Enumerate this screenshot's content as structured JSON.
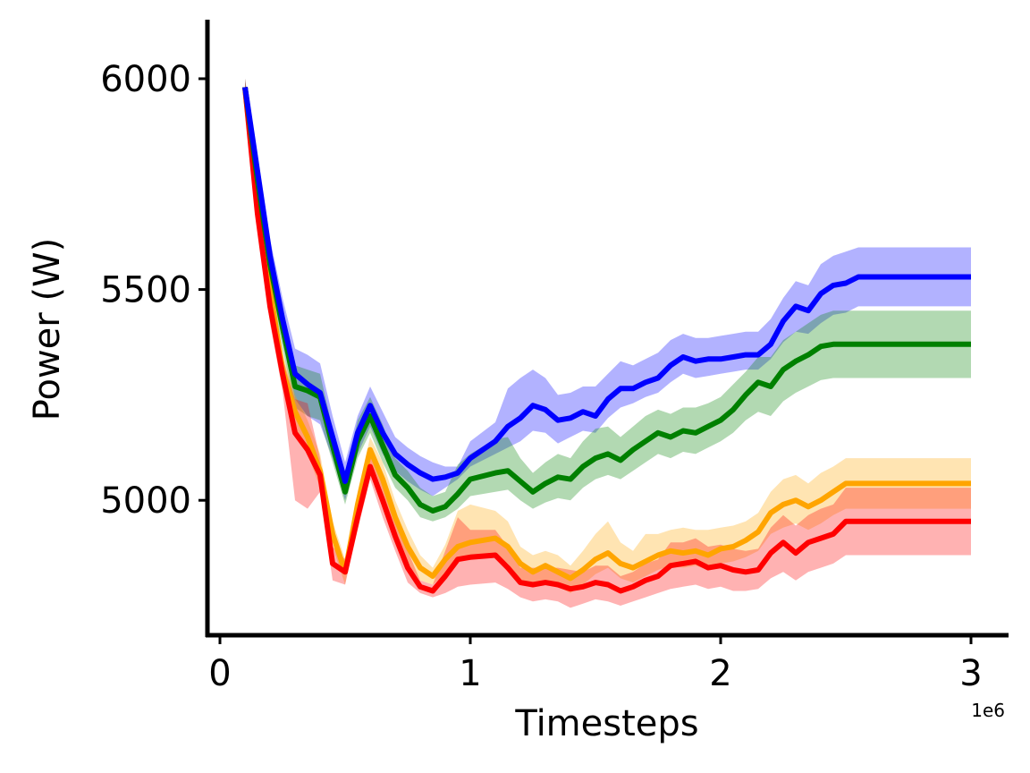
{
  "chart_data": {
    "type": "line",
    "xlabel": "Timesteps",
    "ylabel": "Power (W)",
    "x_offset_label": "1e6",
    "xlim": [
      -0.05,
      3.15
    ],
    "ylim": [
      4680,
      6140
    ],
    "x_ticks": [
      0,
      1,
      2,
      3
    ],
    "x_tick_labels": [
      "0",
      "1",
      "2",
      "3"
    ],
    "y_ticks": [
      5000,
      5500,
      6000
    ],
    "y_tick_labels": [
      "5000",
      "5500",
      "6000"
    ],
    "grid": false,
    "legend": "none",
    "x_unit_scale": 1000000,
    "x": [
      0.1,
      0.15,
      0.2,
      0.25,
      0.3,
      0.35,
      0.4,
      0.45,
      0.5,
      0.55,
      0.6,
      0.65,
      0.7,
      0.75,
      0.8,
      0.85,
      0.9,
      0.95,
      1.0,
      1.1,
      1.15,
      1.2,
      1.25,
      1.3,
      1.35,
      1.4,
      1.45,
      1.5,
      1.55,
      1.6,
      1.65,
      1.7,
      1.75,
      1.8,
      1.85,
      1.9,
      1.95,
      2.0,
      2.05,
      2.1,
      2.15,
      2.2,
      2.25,
      2.3,
      2.35,
      2.4,
      2.45,
      2.5,
      2.55,
      2.6,
      2.65,
      2.7,
      2.75,
      2.8,
      2.85,
      2.9,
      2.95,
      3.0
    ],
    "series": [
      {
        "color": "#0000ff",
        "band_color": "#0000ff",
        "values": [
          5980,
          5780,
          5580,
          5430,
          5300,
          5275,
          5255,
          5150,
          5045,
          5160,
          5225,
          5160,
          5110,
          5085,
          5065,
          5050,
          5055,
          5065,
          5100,
          5140,
          5175,
          5195,
          5225,
          5215,
          5190,
          5195,
          5210,
          5200,
          5240,
          5265,
          5265,
          5280,
          5290,
          5320,
          5340,
          5330,
          5335,
          5335,
          5340,
          5345,
          5345,
          5370,
          5425,
          5460,
          5450,
          5490,
          5510,
          5515,
          5530,
          5530,
          5530,
          5530,
          5530,
          5530,
          5530,
          5530,
          5530,
          5530
        ],
        "lower": [
          5960,
          5740,
          5540,
          5380,
          5240,
          5200,
          5180,
          5100,
          5000,
          5110,
          5175,
          5110,
          5070,
          5045,
          5025,
          5010,
          5030,
          5050,
          5080,
          5110,
          5125,
          5140,
          5165,
          5160,
          5135,
          5150,
          5165,
          5160,
          5195,
          5220,
          5230,
          5245,
          5255,
          5280,
          5300,
          5290,
          5295,
          5300,
          5305,
          5310,
          5310,
          5335,
          5375,
          5400,
          5395,
          5420,
          5440,
          5445,
          5460,
          5460,
          5460,
          5460,
          5460,
          5460,
          5460,
          5460,
          5460,
          5460
        ],
        "upper": [
          6000,
          5820,
          5620,
          5480,
          5360,
          5345,
          5325,
          5200,
          5090,
          5200,
          5270,
          5210,
          5150,
          5125,
          5105,
          5090,
          5080,
          5080,
          5140,
          5185,
          5265,
          5290,
          5310,
          5290,
          5250,
          5255,
          5270,
          5270,
          5300,
          5330,
          5320,
          5335,
          5350,
          5380,
          5395,
          5385,
          5385,
          5390,
          5395,
          5400,
          5400,
          5430,
          5480,
          5520,
          5510,
          5560,
          5580,
          5590,
          5600,
          5600,
          5600,
          5600,
          5600,
          5600,
          5600,
          5600,
          5600,
          5600
        ]
      },
      {
        "color": "#008000",
        "band_color": "#008000",
        "values": [
          5980,
          5760,
          5560,
          5410,
          5270,
          5260,
          5245,
          5130,
          5020,
          5140,
          5200,
          5130,
          5060,
          5030,
          4990,
          4975,
          4985,
          5015,
          5050,
          5065,
          5070,
          5045,
          5020,
          5040,
          5055,
          5050,
          5080,
          5100,
          5110,
          5095,
          5120,
          5140,
          5160,
          5150,
          5165,
          5160,
          5175,
          5190,
          5215,
          5250,
          5280,
          5270,
          5310,
          5330,
          5345,
          5365,
          5370,
          5370,
          5370,
          5370,
          5370,
          5370,
          5370,
          5370,
          5370,
          5370,
          5370,
          5370
        ],
        "lower": [
          5960,
          5720,
          5520,
          5360,
          5220,
          5200,
          5190,
          5090,
          4990,
          5100,
          5160,
          5090,
          5030,
          5000,
          4960,
          4950,
          4960,
          4980,
          5010,
          5020,
          5025,
          5000,
          4980,
          4995,
          5005,
          5000,
          5030,
          5050,
          5060,
          5050,
          5070,
          5090,
          5110,
          5100,
          5115,
          5110,
          5125,
          5140,
          5160,
          5190,
          5210,
          5200,
          5235,
          5255,
          5270,
          5285,
          5290,
          5290,
          5290,
          5290,
          5290,
          5290,
          5290,
          5290,
          5290,
          5290,
          5290,
          5290
        ],
        "upper": [
          6000,
          5800,
          5600,
          5460,
          5320,
          5310,
          5300,
          5170,
          5060,
          5190,
          5245,
          5180,
          5100,
          5070,
          5030,
          5010,
          5020,
          5085,
          5110,
          5145,
          5150,
          5100,
          5065,
          5090,
          5110,
          5100,
          5140,
          5170,
          5175,
          5150,
          5175,
          5200,
          5215,
          5205,
          5220,
          5220,
          5230,
          5245,
          5275,
          5305,
          5340,
          5340,
          5380,
          5400,
          5420,
          5440,
          5450,
          5450,
          5450,
          5450,
          5450,
          5450,
          5450,
          5450,
          5450,
          5450,
          5450,
          5450
        ]
      },
      {
        "color": "#ffa500",
        "band_color": "#ffa500",
        "values": [
          5980,
          5700,
          5500,
          5310,
          5210,
          5150,
          5070,
          4920,
          4830,
          4990,
          5120,
          5050,
          4960,
          4890,
          4840,
          4820,
          4860,
          4890,
          4900,
          4910,
          4890,
          4850,
          4830,
          4845,
          4830,
          4815,
          4835,
          4860,
          4875,
          4850,
          4840,
          4855,
          4870,
          4880,
          4875,
          4880,
          4870,
          4885,
          4890,
          4905,
          4925,
          4970,
          4990,
          5000,
          4985,
          5000,
          5020,
          5040,
          5040,
          5040,
          5040,
          5040,
          5040,
          5040,
          5040,
          5040,
          5040,
          5040
        ],
        "lower": [
          5960,
          5660,
          5460,
          5270,
          5170,
          5110,
          5030,
          4890,
          4800,
          4960,
          5090,
          5010,
          4920,
          4850,
          4810,
          4800,
          4825,
          4855,
          4860,
          4870,
          4850,
          4810,
          4800,
          4810,
          4795,
          4780,
          4800,
          4825,
          4840,
          4815,
          4805,
          4820,
          4835,
          4845,
          4840,
          4845,
          4835,
          4850,
          4855,
          4865,
          4880,
          4920,
          4935,
          4945,
          4930,
          4945,
          4965,
          4980,
          4980,
          4980,
          4980,
          4980,
          4980,
          4980,
          4980,
          4980,
          4980,
          4980
        ],
        "upper": [
          6000,
          5740,
          5540,
          5350,
          5250,
          5190,
          5110,
          4950,
          4860,
          5020,
          5150,
          5090,
          5000,
          4930,
          4870,
          4840,
          4895,
          4975,
          4990,
          4975,
          4950,
          4890,
          4870,
          4880,
          4870,
          4845,
          4880,
          4920,
          4950,
          4900,
          4880,
          4920,
          4920,
          4930,
          4935,
          4930,
          4930,
          4935,
          4940,
          4950,
          4970,
          5020,
          5050,
          5060,
          5040,
          5065,
          5080,
          5100,
          5100,
          5100,
          5100,
          5100,
          5100,
          5100,
          5100,
          5100,
          5100,
          5100
        ]
      },
      {
        "color": "#ff0000",
        "band_color": "#ff0000",
        "values": [
          5980,
          5680,
          5460,
          5300,
          5160,
          5120,
          5060,
          4850,
          4830,
          4960,
          5080,
          5000,
          4915,
          4840,
          4795,
          4785,
          4820,
          4860,
          4865,
          4870,
          4840,
          4805,
          4800,
          4805,
          4800,
          4790,
          4795,
          4805,
          4800,
          4785,
          4795,
          4810,
          4820,
          4845,
          4850,
          4855,
          4840,
          4845,
          4835,
          4830,
          4835,
          4875,
          4900,
          4875,
          4900,
          4910,
          4920,
          4950,
          4950,
          4950,
          4950,
          4950,
          4950,
          4950,
          4950,
          4950,
          4950,
          4950
        ],
        "lower": [
          5960,
          5640,
          5420,
          5260,
          5000,
          4980,
          5020,
          4810,
          4800,
          4930,
          5050,
          4960,
          4880,
          4805,
          4780,
          4770,
          4780,
          4795,
          4800,
          4805,
          4790,
          4770,
          4760,
          4765,
          4760,
          4745,
          4755,
          4765,
          4760,
          4750,
          4760,
          4770,
          4780,
          4790,
          4795,
          4800,
          4790,
          4795,
          4785,
          4785,
          4790,
          4815,
          4830,
          4810,
          4830,
          4840,
          4850,
          4870,
          4870,
          4870,
          4870,
          4870,
          4870,
          4870,
          4870,
          4870,
          4870,
          4870
        ],
        "upper": [
          6000,
          5720,
          5500,
          5340,
          5240,
          5230,
          5100,
          4890,
          4860,
          4990,
          5110,
          5040,
          4950,
          4880,
          4810,
          4800,
          4880,
          4960,
          4930,
          4930,
          4890,
          4840,
          4840,
          4840,
          4840,
          4835,
          4830,
          4845,
          4845,
          4820,
          4830,
          4850,
          4860,
          4900,
          4900,
          4910,
          4890,
          4895,
          4885,
          4880,
          4885,
          4935,
          4965,
          4940,
          4965,
          4980,
          4990,
          5030,
          5030,
          5030,
          5030,
          5030,
          5030,
          5030,
          5030,
          5030,
          5030,
          5030
        ]
      }
    ]
  }
}
